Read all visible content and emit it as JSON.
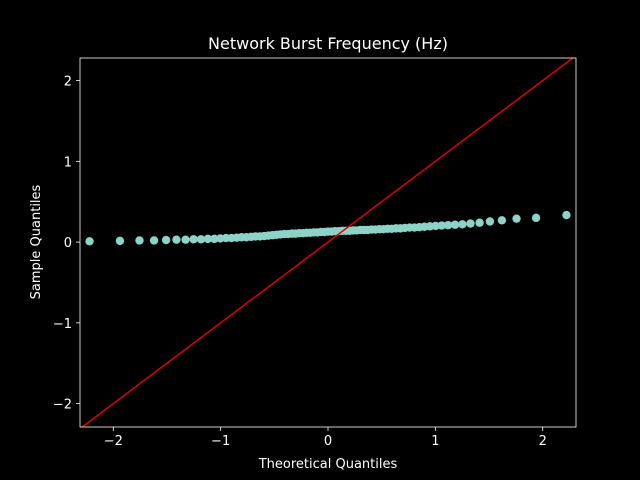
{
  "chart_data": {
    "type": "scatter",
    "title": "Network Burst Frequency (Hz)",
    "x_label": "Theoretical Quantiles",
    "y_label": "Sample Quantiles",
    "color": "#8dd3c7",
    "x": [
      -2.221,
      -1.938,
      -1.756,
      -1.62,
      -1.508,
      -1.412,
      -1.327,
      -1.252,
      -1.183,
      -1.119,
      -1.059,
      -1.003,
      -0.95,
      -0.899,
      -0.851,
      -0.805,
      -0.76,
      -0.716,
      -0.674,
      -0.634,
      -0.594,
      -0.555,
      -0.517,
      -0.479,
      -0.443,
      -0.407,
      -0.371,
      -0.336,
      -0.301,
      -0.267,
      -0.233,
      -0.199,
      -0.166,
      -0.132,
      -0.099,
      -0.066,
      -0.033,
      0,
      0.033,
      0.066,
      0.099,
      0.132,
      0.166,
      0.199,
      0.233,
      0.267,
      0.301,
      0.336,
      0.371,
      0.407,
      0.443,
      0.479,
      0.517,
      0.555,
      0.594,
      0.634,
      0.674,
      0.716,
      0.76,
      0.805,
      0.851,
      0.899,
      0.95,
      1.003,
      1.059,
      1.119,
      1.183,
      1.252,
      1.327,
      1.412,
      1.508,
      1.62,
      1.756,
      1.938,
      2.221
    ],
    "values": [
      0.01,
      0.015,
      0.02,
      0.02,
      0.025,
      0.03,
      0.03,
      0.035,
      0.035,
      0.04,
      0.04,
      0.045,
      0.05,
      0.05,
      0.055,
      0.06,
      0.06,
      0.065,
      0.07,
      0.07,
      0.075,
      0.08,
      0.085,
      0.09,
      0.095,
      0.1,
      0.1,
      0.105,
      0.105,
      0.11,
      0.11,
      0.115,
      0.115,
      0.12,
      0.12,
      0.125,
      0.125,
      0.13,
      0.13,
      0.135,
      0.135,
      0.14,
      0.14,
      0.14,
      0.145,
      0.145,
      0.15,
      0.15,
      0.15,
      0.155,
      0.155,
      0.16,
      0.16,
      0.165,
      0.165,
      0.17,
      0.17,
      0.175,
      0.18,
      0.18,
      0.185,
      0.19,
      0.195,
      0.2,
      0.205,
      0.21,
      0.215,
      0.22,
      0.23,
      0.24,
      0.255,
      0.27,
      0.29,
      0.3,
      0.335
    ],
    "line": {
      "x": [
        -2.29,
        2.28
      ],
      "y": [
        -2.29,
        2.28
      ],
      "color": "#e00000"
    },
    "xlim": [
      -2.31,
      2.31
    ],
    "ylim": [
      -2.29,
      2.28
    ],
    "xticks": [
      {
        "value": -2,
        "label": "−2"
      },
      {
        "value": -1,
        "label": "−1"
      },
      0,
      1,
      2
    ],
    "yticks": [
      {
        "value": -2,
        "label": "−2"
      },
      {
        "value": -1,
        "label": "−1"
      },
      0,
      1,
      2
    ]
  }
}
